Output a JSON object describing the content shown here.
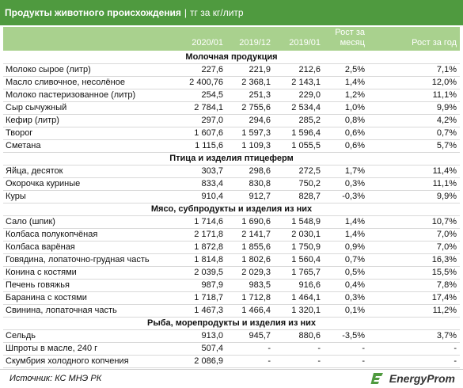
{
  "header": {
    "title_bold": "Продукты животного происхождения",
    "separator": "|",
    "title_unit": "тг за кг/литр"
  },
  "columns": [
    "2020/01",
    "2019/12",
    "2019/01",
    "Рост за месяц",
    "Рост за год"
  ],
  "rows": [
    {
      "section": "Молочная продукция"
    },
    {
      "name": "Молоко сырое (литр)",
      "v": [
        "227,6",
        "221,9",
        "212,6",
        "2,5%",
        "7,1%"
      ]
    },
    {
      "name": "Масло сливочное, несолёное",
      "v": [
        "2 400,76",
        "2 368,1",
        "2 143,1",
        "1,4%",
        "12,0%"
      ]
    },
    {
      "name": "Молоко пастеризованное (литр)",
      "v": [
        "254,5",
        "251,3",
        "229,0",
        "1,2%",
        "11,1%"
      ]
    },
    {
      "name": "Сыр сычужный",
      "v": [
        "2 784,1",
        "2 755,6",
        "2 534,4",
        "1,0%",
        "9,9%"
      ]
    },
    {
      "name": "Кефир (литр)",
      "v": [
        "297,0",
        "294,6",
        "285,2",
        "0,8%",
        "4,2%"
      ]
    },
    {
      "name": "Творог",
      "v": [
        "1 607,6",
        "1 597,3",
        "1 596,4",
        "0,6%",
        "0,7%"
      ]
    },
    {
      "name": "Сметана",
      "v": [
        "1 115,6",
        "1 109,3",
        "1 055,5",
        "0,6%",
        "5,7%"
      ]
    },
    {
      "section": "Птица и изделия птицеферм"
    },
    {
      "name": "Яйца, десяток",
      "v": [
        "303,7",
        "298,6",
        "272,5",
        "1,7%",
        "11,4%"
      ]
    },
    {
      "name": "Окорочка куриные",
      "v": [
        "833,4",
        "830,8",
        "750,2",
        "0,3%",
        "11,1%"
      ]
    },
    {
      "name": "Куры",
      "v": [
        "910,4",
        "912,7",
        "828,7",
        "-0,3%",
        "9,9%"
      ]
    },
    {
      "section": "Мясо, субпродукты и изделия из них"
    },
    {
      "name": "Сало (шпик)",
      "v": [
        "1 714,6",
        "1 690,6",
        "1 548,9",
        "1,4%",
        "10,7%"
      ]
    },
    {
      "name": "Колбаса полукопчёная",
      "v": [
        "2 171,8",
        "2 141,7",
        "2 030,1",
        "1,4%",
        "7,0%"
      ]
    },
    {
      "name": "Колбаса варёная",
      "v": [
        "1 872,8",
        "1 855,6",
        "1 750,9",
        "0,9%",
        "7,0%"
      ]
    },
    {
      "name": "Говядина, лопаточно-грудная часть",
      "v": [
        "1 814,8",
        "1 802,6",
        "1 560,4",
        "0,7%",
        "16,3%"
      ]
    },
    {
      "name": "Конина с костями",
      "v": [
        "2 039,5",
        "2 029,3",
        "1 765,7",
        "0,5%",
        "15,5%"
      ]
    },
    {
      "name": "Печень говяжья",
      "v": [
        "987,9",
        "983,5",
        "916,6",
        "0,4%",
        "7,8%"
      ]
    },
    {
      "name": "Баранина с костями",
      "v": [
        "1 718,7",
        "1 712,8",
        "1 464,1",
        "0,3%",
        "17,4%"
      ]
    },
    {
      "name": "Свинина, лопаточная часть",
      "v": [
        "1 467,3",
        "1 466,4",
        "1 320,1",
        "0,1%",
        "11,2%"
      ]
    },
    {
      "section": "Рыба, морепродукты и изделия из них"
    },
    {
      "name": "Сельдь",
      "v": [
        "913,0",
        "945,7",
        "880,6",
        "-3,5%",
        "3,7%"
      ]
    },
    {
      "name": "Шпроты в масле, 240 г",
      "v": [
        "507,4",
        "-",
        "-",
        "-",
        "-"
      ]
    },
    {
      "name": "Скумбрия холодного копчения",
      "v": [
        "2 086,9",
        "-",
        "-",
        "-",
        "-"
      ]
    }
  ],
  "footer": {
    "source": "Источник: КС МНЭ РК",
    "logo": "EnergyProm",
    "logo_icon": "energyprom-logo-icon"
  },
  "colors": {
    "title_bg": "#4f9a3f",
    "header_bg": "#a9d18e"
  }
}
